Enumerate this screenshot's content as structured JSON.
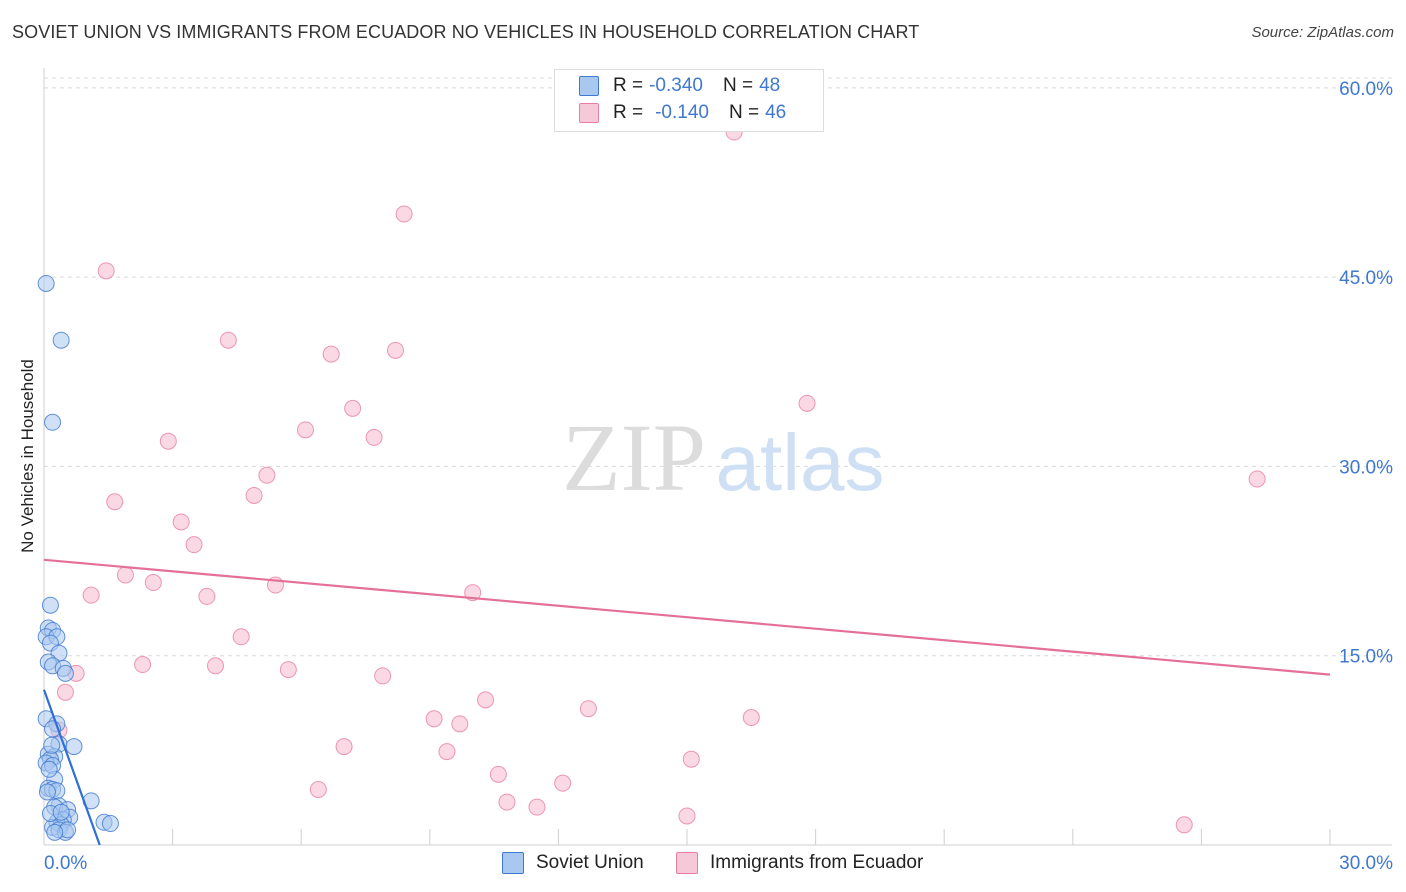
{
  "header": {
    "title": "SOVIET UNION VS IMMIGRANTS FROM ECUADOR NO VEHICLES IN HOUSEHOLD CORRELATION CHART",
    "source": "Source: ZipAtlas.com"
  },
  "watermark": {
    "zip": "ZIP",
    "atlas": "atlas"
  },
  "colors": {
    "soviet_fill": "#a9c8f0",
    "soviet_stroke": "#3f78d0",
    "soviet_line": "#2f6fd6",
    "ecuador_fill": "#f6b8cd",
    "ecuador_stroke": "#e87fa3",
    "ecuador_line": "#e4709a",
    "axis_label": "#3f78d0",
    "grid": "#d9d9d9"
  },
  "legend": {
    "soviet": {
      "r_label": "R =",
      "r_value": "-0.340",
      "n_label": "N =",
      "n_value": "48"
    },
    "ecuador": {
      "r_label": "R =",
      "r_value": "-0.140",
      "n_label": "N =",
      "n_value": "46"
    }
  },
  "bottom_legend": {
    "soviet": "Soviet Union",
    "ecuador": "Immigrants from Ecuador"
  },
  "chart_data": {
    "type": "scatter",
    "title": "SOVIET UNION VS IMMIGRANTS FROM ECUADOR NO VEHICLES IN HOUSEHOLD CORRELATION CHART",
    "xlabel": "",
    "ylabel": "No Vehicles in Household",
    "xlim": [
      0,
      30
    ],
    "ylim": [
      0,
      63
    ],
    "x_tick_labels": [
      "0.0%",
      "30.0%"
    ],
    "y_ticks": [
      15,
      30,
      45,
      60
    ],
    "y_tick_labels": [
      "15.0%",
      "30.0%",
      "45.0%",
      "60.0%"
    ],
    "grid": true,
    "series": [
      {
        "name": "Soviet Union",
        "points": [
          [
            0.05,
            44.5
          ],
          [
            0.4,
            40.0
          ],
          [
            0.2,
            33.5
          ],
          [
            0.15,
            19.0
          ],
          [
            0.1,
            17.2
          ],
          [
            0.2,
            17.0
          ],
          [
            0.05,
            16.5
          ],
          [
            0.3,
            16.5
          ],
          [
            0.15,
            16.0
          ],
          [
            0.35,
            15.2
          ],
          [
            0.1,
            14.5
          ],
          [
            0.2,
            14.2
          ],
          [
            0.45,
            14.0
          ],
          [
            0.5,
            13.6
          ],
          [
            0.05,
            10.0
          ],
          [
            0.3,
            9.6
          ],
          [
            0.2,
            9.2
          ],
          [
            0.35,
            8.0
          ],
          [
            0.7,
            7.8
          ],
          [
            0.1,
            7.2
          ],
          [
            0.25,
            7.0
          ],
          [
            0.15,
            6.8
          ],
          [
            0.05,
            6.5
          ],
          [
            0.2,
            6.3
          ],
          [
            0.25,
            5.2
          ],
          [
            0.1,
            4.5
          ],
          [
            0.2,
            4.4
          ],
          [
            0.3,
            4.3
          ],
          [
            0.08,
            4.2
          ],
          [
            0.35,
            3.1
          ],
          [
            0.25,
            3.0
          ],
          [
            1.1,
            3.5
          ],
          [
            0.55,
            2.8
          ],
          [
            0.6,
            2.2
          ],
          [
            0.45,
            2.0
          ],
          [
            0.3,
            1.8
          ],
          [
            0.4,
            1.6
          ],
          [
            1.4,
            1.8
          ],
          [
            1.55,
            1.7
          ],
          [
            0.2,
            1.4
          ],
          [
            0.35,
            1.2
          ],
          [
            0.5,
            1.0
          ],
          [
            0.55,
            1.2
          ],
          [
            0.25,
            1.0
          ],
          [
            0.15,
            2.5
          ],
          [
            0.4,
            2.6
          ],
          [
            0.18,
            7.9
          ],
          [
            0.12,
            6.0
          ]
        ]
      },
      {
        "name": "Immigrants from Ecuador",
        "points": [
          [
            16.1,
            56.5
          ],
          [
            8.4,
            50.0
          ],
          [
            1.45,
            45.5
          ],
          [
            4.3,
            40.0
          ],
          [
            8.2,
            39.2
          ],
          [
            6.7,
            38.9
          ],
          [
            17.8,
            35.0
          ],
          [
            7.2,
            34.6
          ],
          [
            6.1,
            32.9
          ],
          [
            7.7,
            32.3
          ],
          [
            2.9,
            32.0
          ],
          [
            5.2,
            29.3
          ],
          [
            28.3,
            29.0
          ],
          [
            4.9,
            27.7
          ],
          [
            1.65,
            27.2
          ],
          [
            3.2,
            25.6
          ],
          [
            3.5,
            23.8
          ],
          [
            1.9,
            21.4
          ],
          [
            2.55,
            20.8
          ],
          [
            5.4,
            20.6
          ],
          [
            10.0,
            20.0
          ],
          [
            1.1,
            19.8
          ],
          [
            3.8,
            19.7
          ],
          [
            4.6,
            16.5
          ],
          [
            2.3,
            14.3
          ],
          [
            4.0,
            14.2
          ],
          [
            5.7,
            13.9
          ],
          [
            0.75,
            13.6
          ],
          [
            7.9,
            13.4
          ],
          [
            0.5,
            12.1
          ],
          [
            10.3,
            11.5
          ],
          [
            12.7,
            10.8
          ],
          [
            16.5,
            10.1
          ],
          [
            9.1,
            10.0
          ],
          [
            9.7,
            9.6
          ],
          [
            0.35,
            9.1
          ],
          [
            7.0,
            7.8
          ],
          [
            9.4,
            7.4
          ],
          [
            15.1,
            6.8
          ],
          [
            10.6,
            5.6
          ],
          [
            12.1,
            4.9
          ],
          [
            6.4,
            4.4
          ],
          [
            10.8,
            3.4
          ],
          [
            11.5,
            3.0
          ],
          [
            15.0,
            2.3
          ],
          [
            26.6,
            1.6
          ]
        ]
      }
    ],
    "trendlines": [
      {
        "name": "Soviet Union",
        "x": [
          0.0,
          1.3
        ],
        "y": [
          12.3,
          0.0
        ]
      },
      {
        "name": "Immigrants from Ecuador",
        "x": [
          0.0,
          30.0
        ],
        "y": [
          22.6,
          13.5
        ]
      }
    ]
  }
}
